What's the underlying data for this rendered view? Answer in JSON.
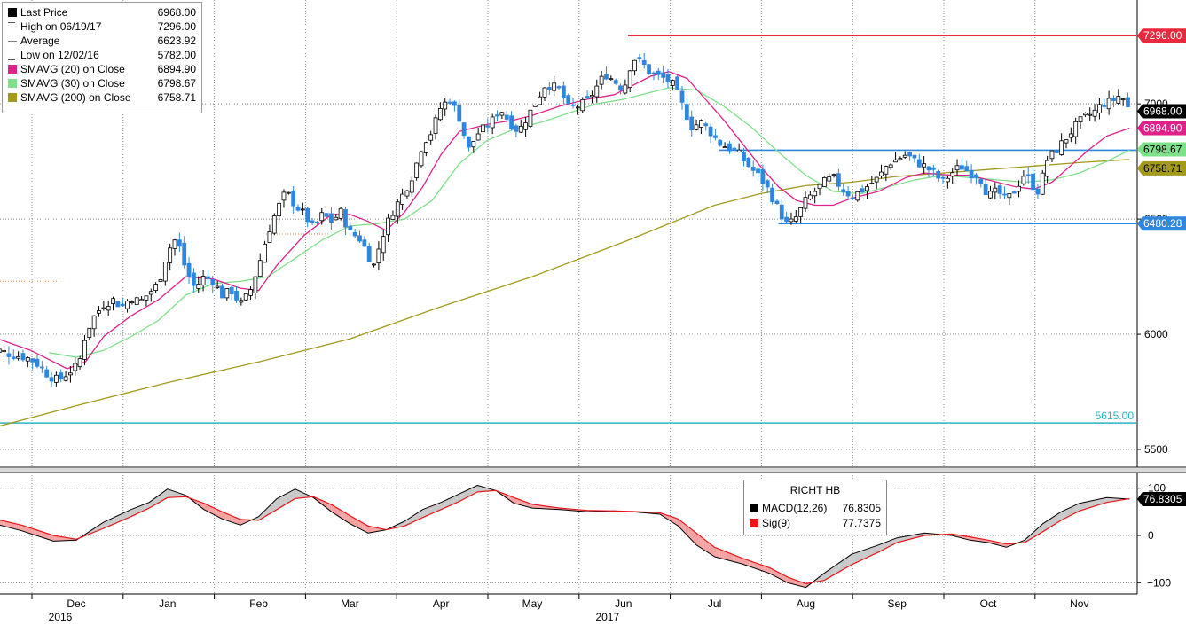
{
  "legend": {
    "items": [
      {
        "label": "Last Price",
        "value": "6968.00",
        "color": "#000000",
        "icon": "square"
      },
      {
        "label": "High on 06/19/17",
        "value": "7296.00",
        "color": "#555555",
        "icon": "high-marker"
      },
      {
        "label": "Average",
        "value": "6623.92",
        "color": "#555555",
        "icon": "average-marker"
      },
      {
        "label": "Low on 12/02/16",
        "value": "5782.00",
        "color": "#555555",
        "icon": "low-marker"
      },
      {
        "label": "SMAVG (20) on Close",
        "value": "6894.90",
        "color": "#e0218a",
        "icon": "square"
      },
      {
        "label": "SMAVG (30) on Close",
        "value": "6798.67",
        "color": "#7fe08a",
        "icon": "square"
      },
      {
        "label": "SMAVG (200) on Close",
        "value": "6758.71",
        "color": "#a39a1c",
        "icon": "square"
      }
    ]
  },
  "macd_legend": {
    "title": "RICHT HB",
    "items": [
      {
        "label": "MACD(12,26)",
        "value": "76.8305",
        "color": "#000000"
      },
      {
        "label": "Sig(9)",
        "value": "77.7375",
        "color": "#e8161b"
      }
    ]
  },
  "price_tags": [
    {
      "text": "7296.00",
      "bg": "#e8283c",
      "fg": "#ffffff"
    },
    {
      "text": "6968.00",
      "bg": "#000000",
      "fg": "#ffffff"
    },
    {
      "text": "6894.90",
      "bg": "#e0218a",
      "fg": "#ffffff"
    },
    {
      "text": "6798.67",
      "bg": "#7fe08a",
      "fg": "#000000"
    },
    {
      "text": "6758.71",
      "bg": "#a39a1c",
      "fg": "#000000"
    },
    {
      "text": "6480.28",
      "bg": "#2e86de",
      "fg": "#ffffff"
    }
  ],
  "macd_tag": {
    "text": "76.8305",
    "bg": "#000000",
    "fg": "#ffffff"
  },
  "annotation_5615": {
    "text": "5615.00",
    "color": "#2bb3c0"
  },
  "colors": {
    "up": "#000000",
    "down": "#2e86de",
    "resistance": "#e8283c",
    "support": "#2e86de",
    "sma20": "#e0218a",
    "sma30": "#7fe08a",
    "sma200": "#a39a1c",
    "macd": "#000000",
    "signal": "#e8161b",
    "fill_above": "#c8c8c8",
    "fill_below": "#f4a0a0",
    "grid": "#888888",
    "divider": "#8a8a8a"
  },
  "chart_data": {
    "type": "candlestick",
    "instrument": "RICHT HB",
    "price_axis": {
      "ticks": [
        5500,
        6000,
        6500,
        7000
      ],
      "ylim": [
        5450,
        7420
      ]
    },
    "macd_axis": {
      "ticks": [
        100,
        0,
        -100
      ],
      "ylim": [
        -120,
        120
      ]
    },
    "x_axis": {
      "months": [
        "Dec",
        "Jan",
        "Feb",
        "Mar",
        "Apr",
        "May",
        "Jun",
        "Jul",
        "Aug",
        "Sep",
        "Oct",
        "Nov"
      ],
      "years": [
        {
          "label": "2016",
          "month_index": 0
        },
        {
          "label": "2017",
          "month_index": 6
        }
      ]
    },
    "horizontal_lines": [
      {
        "value": 7296,
        "label": "7296.00",
        "start_month": 6.05,
        "color": "#e8283c"
      },
      {
        "value": 6798.67,
        "label": "6798.67",
        "start_month": 7.05,
        "color": "#2e86de"
      },
      {
        "value": 6480.28,
        "label": "6480.28",
        "start_month": 7.7,
        "color": "#2e86de"
      },
      {
        "value": 5615,
        "label": "5615.00",
        "start_month": -0.9,
        "color": "#2bb3c0"
      }
    ],
    "close_path": [
      [
        -0.85,
        5930
      ],
      [
        -0.7,
        5910
      ],
      [
        -0.55,
        5900
      ],
      [
        -0.45,
        5880
      ],
      [
        -0.3,
        5820
      ],
      [
        -0.2,
        5800
      ],
      [
        -0.1,
        5830
      ],
      [
        0.0,
        5860
      ],
      [
        0.05,
        5900
      ],
      [
        0.1,
        6000
      ],
      [
        0.2,
        6080
      ],
      [
        0.3,
        6130
      ],
      [
        0.4,
        6150
      ],
      [
        0.5,
        6120
      ],
      [
        0.6,
        6160
      ],
      [
        0.7,
        6140
      ],
      [
        0.8,
        6180
      ],
      [
        0.9,
        6220
      ],
      [
        1.0,
        6360
      ],
      [
        1.1,
        6420
      ],
      [
        1.2,
        6280
      ],
      [
        1.3,
        6200
      ],
      [
        1.4,
        6250
      ],
      [
        1.5,
        6230
      ],
      [
        1.6,
        6170
      ],
      [
        1.7,
        6190
      ],
      [
        1.8,
        6130
      ],
      [
        1.9,
        6180
      ],
      [
        2.0,
        6300
      ],
      [
        2.1,
        6440
      ],
      [
        2.2,
        6540
      ],
      [
        2.3,
        6620
      ],
      [
        2.4,
        6560
      ],
      [
        2.5,
        6520
      ],
      [
        2.6,
        6460
      ],
      [
        2.7,
        6520
      ],
      [
        2.8,
        6490
      ],
      [
        2.9,
        6530
      ],
      [
        3.0,
        6440
      ],
      [
        3.1,
        6420
      ],
      [
        3.2,
        6350
      ],
      [
        3.25,
        6280
      ],
      [
        3.35,
        6420
      ],
      [
        3.45,
        6520
      ],
      [
        3.6,
        6620
      ],
      [
        3.7,
        6700
      ],
      [
        3.8,
        6830
      ],
      [
        3.9,
        6880
      ],
      [
        4.0,
        6990
      ],
      [
        4.1,
        7020
      ],
      [
        4.2,
        6940
      ],
      [
        4.3,
        6800
      ],
      [
        4.4,
        6870
      ],
      [
        4.55,
        6920
      ],
      [
        4.65,
        6980
      ],
      [
        4.75,
        6920
      ],
      [
        4.85,
        6880
      ],
      [
        5.0,
        6980
      ],
      [
        5.15,
        7090
      ],
      [
        5.3,
        7060
      ],
      [
        5.4,
        6980
      ],
      [
        5.5,
        6990
      ],
      [
        5.6,
        7010
      ],
      [
        5.7,
        7070
      ],
      [
        5.8,
        7130
      ],
      [
        5.9,
        7100
      ],
      [
        6.0,
        7060
      ],
      [
        6.1,
        7200
      ],
      [
        6.2,
        7180
      ],
      [
        6.3,
        7130
      ],
      [
        6.45,
        7110
      ],
      [
        6.55,
        7080
      ],
      [
        6.65,
        6990
      ],
      [
        6.75,
        6900
      ],
      [
        6.85,
        6920
      ],
      [
        6.95,
        6880
      ],
      [
        7.05,
        6830
      ],
      [
        7.15,
        6810
      ],
      [
        7.25,
        6790
      ],
      [
        7.35,
        6740
      ],
      [
        7.5,
        6680
      ],
      [
        7.6,
        6620
      ],
      [
        7.7,
        6540
      ],
      [
        7.8,
        6470
      ],
      [
        7.9,
        6510
      ],
      [
        8.0,
        6580
      ],
      [
        8.1,
        6620
      ],
      [
        8.2,
        6660
      ],
      [
        8.3,
        6680
      ],
      [
        8.4,
        6630
      ],
      [
        8.5,
        6600
      ],
      [
        8.6,
        6620
      ],
      [
        8.7,
        6650
      ],
      [
        8.8,
        6680
      ],
      [
        8.9,
        6740
      ],
      [
        9.0,
        6760
      ],
      [
        9.1,
        6780
      ],
      [
        9.2,
        6750
      ],
      [
        9.3,
        6730
      ],
      [
        9.4,
        6700
      ],
      [
        9.5,
        6660
      ],
      [
        9.6,
        6700
      ],
      [
        9.7,
        6730
      ],
      [
        9.8,
        6700
      ],
      [
        9.9,
        6690
      ],
      [
        10.0,
        6600
      ],
      [
        10.1,
        6620
      ],
      [
        10.2,
        6580
      ],
      [
        10.3,
        6630
      ],
      [
        10.4,
        6700
      ],
      [
        10.5,
        6640
      ],
      [
        10.55,
        6620
      ],
      [
        10.65,
        6760
      ],
      [
        10.75,
        6800
      ],
      [
        10.85,
        6850
      ],
      [
        10.95,
        6900
      ],
      [
        11.05,
        6940
      ],
      [
        11.15,
        6960
      ],
      [
        11.25,
        7000
      ],
      [
        11.35,
        7010
      ],
      [
        11.45,
        7040
      ],
      [
        11.5,
        7010
      ],
      [
        11.55,
        6968
      ]
    ],
    "sma20": [
      [
        -1.0,
        6000
      ],
      [
        -0.5,
        5930
      ],
      [
        -0.1,
        5850
      ],
      [
        0.1,
        5880
      ],
      [
        0.3,
        5990
      ],
      [
        0.6,
        6080
      ],
      [
        0.9,
        6150
      ],
      [
        1.2,
        6250
      ],
      [
        1.5,
        6240
      ],
      [
        1.8,
        6200
      ],
      [
        2.0,
        6190
      ],
      [
        2.2,
        6300
      ],
      [
        2.5,
        6430
      ],
      [
        2.8,
        6520
      ],
      [
        3.0,
        6520
      ],
      [
        3.2,
        6490
      ],
      [
        3.4,
        6450
      ],
      [
        3.6,
        6530
      ],
      [
        3.8,
        6640
      ],
      [
        4.0,
        6780
      ],
      [
        4.2,
        6880
      ],
      [
        4.5,
        6910
      ],
      [
        4.8,
        6930
      ],
      [
        5.0,
        6950
      ],
      [
        5.3,
        6990
      ],
      [
        5.6,
        7020
      ],
      [
        5.9,
        7040
      ],
      [
        6.1,
        7080
      ],
      [
        6.3,
        7120
      ],
      [
        6.5,
        7140
      ],
      [
        6.7,
        7110
      ],
      [
        6.9,
        7020
      ],
      [
        7.1,
        6930
      ],
      [
        7.3,
        6830
      ],
      [
        7.5,
        6730
      ],
      [
        7.7,
        6640
      ],
      [
        7.9,
        6580
      ],
      [
        8.1,
        6560
      ],
      [
        8.3,
        6560
      ],
      [
        8.5,
        6590
      ],
      [
        8.8,
        6620
      ],
      [
        9.1,
        6680
      ],
      [
        9.3,
        6700
      ],
      [
        9.6,
        6690
      ],
      [
        9.8,
        6690
      ],
      [
        10.0,
        6670
      ],
      [
        10.3,
        6640
      ],
      [
        10.5,
        6630
      ],
      [
        10.7,
        6660
      ],
      [
        10.9,
        6730
      ],
      [
        11.1,
        6800
      ],
      [
        11.3,
        6860
      ],
      [
        11.55,
        6894.9
      ]
    ],
    "sma30": [
      [
        -0.3,
        5920
      ],
      [
        0.0,
        5900
      ],
      [
        0.3,
        5930
      ],
      [
        0.6,
        5990
      ],
      [
        0.9,
        6060
      ],
      [
        1.2,
        6170
      ],
      [
        1.5,
        6220
      ],
      [
        1.8,
        6230
      ],
      [
        2.1,
        6250
      ],
      [
        2.4,
        6330
      ],
      [
        2.7,
        6410
      ],
      [
        3.0,
        6470
      ],
      [
        3.3,
        6480
      ],
      [
        3.6,
        6500
      ],
      [
        3.9,
        6580
      ],
      [
        4.2,
        6740
      ],
      [
        4.5,
        6840
      ],
      [
        4.8,
        6890
      ],
      [
        5.1,
        6920
      ],
      [
        5.4,
        6960
      ],
      [
        5.7,
        7000
      ],
      [
        6.0,
        7020
      ],
      [
        6.2,
        7040
      ],
      [
        6.5,
        7070
      ],
      [
        6.8,
        7060
      ],
      [
        7.1,
        6990
      ],
      [
        7.4,
        6900
      ],
      [
        7.7,
        6790
      ],
      [
        8.0,
        6690
      ],
      [
        8.3,
        6620
      ],
      [
        8.6,
        6610
      ],
      [
        8.9,
        6640
      ],
      [
        9.2,
        6670
      ],
      [
        9.5,
        6690
      ],
      [
        9.8,
        6680
      ],
      [
        10.1,
        6670
      ],
      [
        10.4,
        6660
      ],
      [
        10.7,
        6670
      ],
      [
        11.0,
        6700
      ],
      [
        11.3,
        6750
      ],
      [
        11.55,
        6798.67
      ]
    ],
    "sma200": [
      [
        -1.0,
        5585
      ],
      [
        0.0,
        5690
      ],
      [
        1.0,
        5790
      ],
      [
        2.0,
        5880
      ],
      [
        3.0,
        5980
      ],
      [
        4.0,
        6120
      ],
      [
        5.0,
        6250
      ],
      [
        6.0,
        6400
      ],
      [
        7.0,
        6560
      ],
      [
        7.5,
        6610
      ],
      [
        8.0,
        6645
      ],
      [
        8.5,
        6660
      ],
      [
        9.0,
        6685
      ],
      [
        9.5,
        6700
      ],
      [
        10.0,
        6715
      ],
      [
        10.5,
        6730
      ],
      [
        11.0,
        6745
      ],
      [
        11.55,
        6758.71
      ]
    ],
    "macd": [
      [
        -1.0,
        30
      ],
      [
        -0.6,
        10
      ],
      [
        -0.25,
        -12
      ],
      [
        0.0,
        -10
      ],
      [
        0.3,
        28
      ],
      [
        0.6,
        55
      ],
      [
        0.8,
        70
      ],
      [
        1.0,
        98
      ],
      [
        1.2,
        85
      ],
      [
        1.4,
        55
      ],
      [
        1.6,
        35
      ],
      [
        1.8,
        22
      ],
      [
        2.0,
        40
      ],
      [
        2.2,
        78
      ],
      [
        2.4,
        98
      ],
      [
        2.6,
        80
      ],
      [
        2.8,
        50
      ],
      [
        3.0,
        25
      ],
      [
        3.2,
        5
      ],
      [
        3.4,
        12
      ],
      [
        3.6,
        30
      ],
      [
        3.8,
        55
      ],
      [
        4.0,
        70
      ],
      [
        4.2,
        88
      ],
      [
        4.4,
        106
      ],
      [
        4.6,
        95
      ],
      [
        4.8,
        68
      ],
      [
        5.0,
        58
      ],
      [
        5.3,
        55
      ],
      [
        5.6,
        50
      ],
      [
        5.9,
        52
      ],
      [
        6.1,
        50
      ],
      [
        6.4,
        45
      ],
      [
        6.6,
        20
      ],
      [
        6.8,
        -20
      ],
      [
        7.0,
        -45
      ],
      [
        7.3,
        -60
      ],
      [
        7.6,
        -80
      ],
      [
        7.8,
        -100
      ],
      [
        8.0,
        -110
      ],
      [
        8.2,
        -80
      ],
      [
        8.5,
        -40
      ],
      [
        8.8,
        -20
      ],
      [
        9.0,
        -5
      ],
      [
        9.3,
        5
      ],
      [
        9.6,
        0
      ],
      [
        9.8,
        -10
      ],
      [
        10.0,
        -15
      ],
      [
        10.2,
        -25
      ],
      [
        10.4,
        -10
      ],
      [
        10.6,
        25
      ],
      [
        10.8,
        50
      ],
      [
        11.0,
        68
      ],
      [
        11.3,
        80
      ],
      [
        11.55,
        76.83
      ]
    ],
    "signal": [
      [
        -1.0,
        40
      ],
      [
        -0.6,
        22
      ],
      [
        -0.25,
        0
      ],
      [
        0.0,
        -8
      ],
      [
        0.3,
        15
      ],
      [
        0.6,
        40
      ],
      [
        0.8,
        58
      ],
      [
        1.0,
        80
      ],
      [
        1.2,
        82
      ],
      [
        1.4,
        68
      ],
      [
        1.6,
        50
      ],
      [
        1.8,
        34
      ],
      [
        2.0,
        32
      ],
      [
        2.2,
        55
      ],
      [
        2.4,
        78
      ],
      [
        2.6,
        82
      ],
      [
        2.8,
        65
      ],
      [
        3.0,
        42
      ],
      [
        3.2,
        20
      ],
      [
        3.4,
        12
      ],
      [
        3.6,
        20
      ],
      [
        3.8,
        38
      ],
      [
        4.0,
        55
      ],
      [
        4.2,
        72
      ],
      [
        4.4,
        92
      ],
      [
        4.6,
        95
      ],
      [
        4.8,
        80
      ],
      [
        5.0,
        66
      ],
      [
        5.3,
        58
      ],
      [
        5.6,
        53
      ],
      [
        5.9,
        52
      ],
      [
        6.1,
        51
      ],
      [
        6.4,
        48
      ],
      [
        6.6,
        35
      ],
      [
        6.8,
        5
      ],
      [
        7.0,
        -25
      ],
      [
        7.3,
        -48
      ],
      [
        7.6,
        -68
      ],
      [
        7.8,
        -88
      ],
      [
        8.0,
        -102
      ],
      [
        8.2,
        -95
      ],
      [
        8.5,
        -62
      ],
      [
        8.8,
        -35
      ],
      [
        9.0,
        -15
      ],
      [
        9.3,
        0
      ],
      [
        9.6,
        3
      ],
      [
        9.8,
        -3
      ],
      [
        10.0,
        -10
      ],
      [
        10.2,
        -18
      ],
      [
        10.4,
        -15
      ],
      [
        10.6,
        8
      ],
      [
        10.8,
        32
      ],
      [
        11.0,
        52
      ],
      [
        11.3,
        70
      ],
      [
        11.55,
        77.74
      ]
    ]
  }
}
